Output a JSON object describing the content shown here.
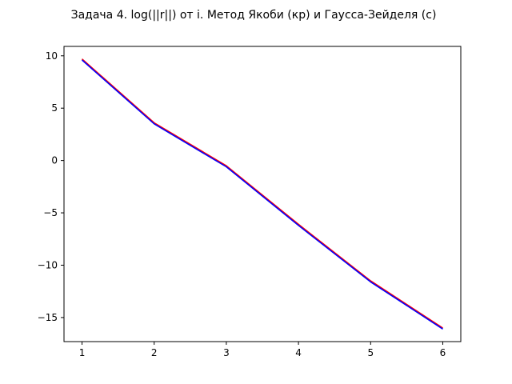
{
  "chart_data": {
    "type": "line",
    "title": "Задача 4. log(||r||) от i. Метод Якоби (кр) и Гаусса-Зейделя (с)",
    "xlabel": "",
    "ylabel": "",
    "x": [
      1,
      2,
      3,
      4,
      5,
      6
    ],
    "xlim": [
      0.75,
      6.25
    ],
    "ylim": [
      -17.3,
      10.9
    ],
    "xticks": [
      1,
      2,
      3,
      4,
      5,
      6
    ],
    "xtick_labels": [
      "1",
      "2",
      "3",
      "4",
      "5",
      "6"
    ],
    "yticks": [
      10,
      5,
      0,
      -5,
      -10,
      -15
    ],
    "ytick_labels": [
      "10",
      "5",
      "0",
      "−5",
      "−10",
      "−15"
    ],
    "grid": false,
    "series": [
      {
        "color": "#ff0000",
        "values": [
          9.7,
          3.6,
          -0.5,
          -6.1,
          -11.5,
          -16.0
        ]
      },
      {
        "color": "#0000ff",
        "values": [
          9.6,
          3.5,
          -0.6,
          -6.2,
          -11.6,
          -16.1
        ]
      }
    ]
  }
}
